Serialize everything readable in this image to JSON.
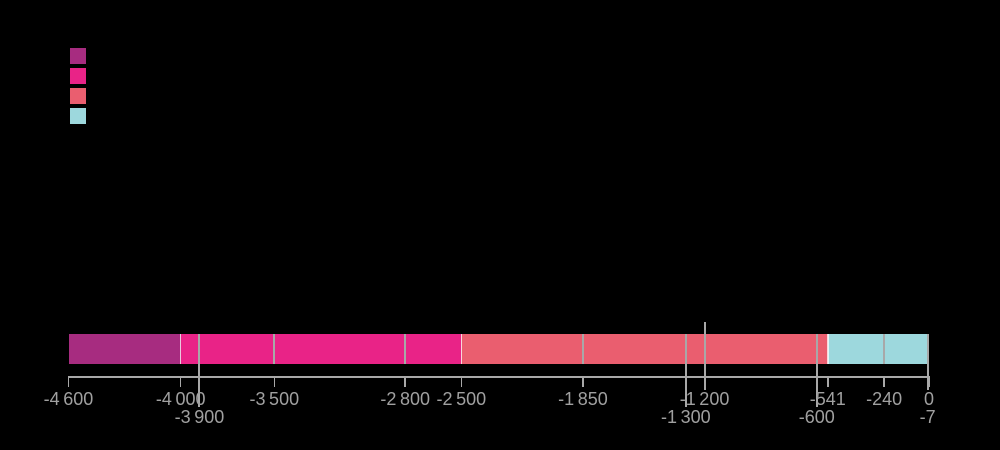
{
  "background_color": "#000000",
  "legend": {
    "position": "top-left",
    "swatches": [
      {
        "name": "legend-swatch-1",
        "color": "#A72C80"
      },
      {
        "name": "legend-swatch-2",
        "color": "#E92387"
      },
      {
        "name": "legend-swatch-3",
        "color": "#EA5E6F"
      },
      {
        "name": "legend-swatch-4",
        "color": "#9DD8DD"
      }
    ]
  },
  "chart_data": {
    "type": "bar",
    "orientation": "horizontal-timeline",
    "title": "",
    "xlabel": "",
    "ylabel": "",
    "xlim": [
      -4600,
      0
    ],
    "grid": false,
    "legend_position": "top-left",
    "axis_color": "#A8A8A8",
    "label_color": "#A0A0A0",
    "separator_color": "rgba(255,255,255,0.75)",
    "segments": [
      {
        "start": -4600,
        "end": -4000,
        "color": "#A72C80"
      },
      {
        "start": -4000,
        "end": -2500,
        "color": "#E92387"
      },
      {
        "start": -2500,
        "end": -541,
        "color": "#EA5E6F"
      },
      {
        "start": -541,
        "end": 0,
        "color": "#9DD8DD"
      }
    ],
    "ticks": [
      {
        "value": -4600,
        "label": "-4 600",
        "row": 1,
        "axis_tick": true,
        "marker": "none"
      },
      {
        "value": -4000,
        "label": "-4 000",
        "row": 1,
        "axis_tick": true,
        "marker": "none"
      },
      {
        "value": -3900,
        "label": "-3 900",
        "row": 2,
        "axis_tick": false,
        "marker": "bar-to-label"
      },
      {
        "value": -3500,
        "label": "-3 500",
        "row": 1,
        "axis_tick": true,
        "marker": "bar-only"
      },
      {
        "value": -2800,
        "label": "-2 800",
        "row": 1,
        "axis_tick": true,
        "marker": "bar-only"
      },
      {
        "value": -2500,
        "label": "-2 500",
        "row": 1,
        "axis_tick": true,
        "marker": "none"
      },
      {
        "value": -1850,
        "label": "-1 850",
        "row": 1,
        "axis_tick": true,
        "marker": "bar-only"
      },
      {
        "value": -1300,
        "label": "-1 300",
        "row": 2,
        "axis_tick": false,
        "marker": "bar-to-label"
      },
      {
        "value": -1200,
        "label": "-1 200",
        "row": 1,
        "axis_tick": false,
        "marker": "above-to-label"
      },
      {
        "value": -600,
        "label": "-600",
        "row": 2,
        "axis_tick": false,
        "marker": "bar-to-label"
      },
      {
        "value": -541,
        "label": "-541",
        "row": 1,
        "axis_tick": true,
        "marker": "none"
      },
      {
        "value": -240,
        "label": "-240",
        "row": 1,
        "axis_tick": true,
        "marker": "bar-only"
      },
      {
        "value": -7,
        "label": "-7",
        "row": 2,
        "axis_tick": false,
        "marker": "edge"
      },
      {
        "value": 0,
        "label": "0",
        "row": 1,
        "axis_tick": true,
        "marker": "none"
      }
    ]
  }
}
